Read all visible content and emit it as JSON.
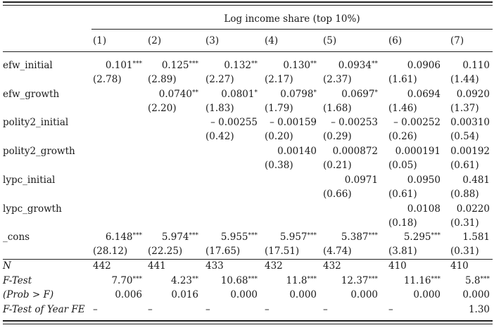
{
  "header": {
    "dependent_variable": "Log income share (top 10%)",
    "columns": [
      "(1)",
      "(2)",
      "(3)",
      "(4)",
      "(5)",
      "(6)",
      "(7)"
    ]
  },
  "rows": [
    {
      "label": "efw_initial",
      "coef": [
        "0.101",
        "0.125",
        "0.132",
        "0.130",
        "0.0934",
        "0.0906",
        "0.110"
      ],
      "stars": [
        "***",
        "***",
        "**",
        "**",
        "**",
        "",
        ""
      ],
      "t": [
        "(2.78)",
        "(2.89)",
        "(2.27)",
        "(2.17)",
        "(2.37)",
        "(1.61)",
        "(1.44)"
      ]
    },
    {
      "label": "efw_growth",
      "coef": [
        "",
        "0.0740",
        "0.0801",
        "0.0798",
        "0.0697",
        "0.0694",
        "0.0920"
      ],
      "stars": [
        "",
        "**",
        "*",
        "*",
        "*",
        "",
        ""
      ],
      "t": [
        "",
        "(2.20)",
        "(1.83)",
        "(1.79)",
        "(1.68)",
        "(1.46)",
        "(1.37)"
      ]
    },
    {
      "label": "polity2_initial",
      "coef": [
        "",
        "",
        "– 0.00255",
        "– 0.00159",
        "– 0.00253",
        "– 0.00252",
        "0.00310"
      ],
      "stars": [
        "",
        "",
        "",
        "",
        "",
        "",
        ""
      ],
      "t": [
        "",
        "",
        "(0.42)",
        "(0.20)",
        "(0.29)",
        "(0.26)",
        "(0.54)"
      ]
    },
    {
      "label": "polity2_growth",
      "coef": [
        "",
        "",
        "",
        "0.00140",
        "0.000872",
        "0.000191",
        "0.00192"
      ],
      "stars": [
        "",
        "",
        "",
        "",
        "",
        "",
        ""
      ],
      "t": [
        "",
        "",
        "",
        "(0.38)",
        "(0.21)",
        "(0.05)",
        "(0.61)"
      ]
    },
    {
      "label": "lypc_initial",
      "coef": [
        "",
        "",
        "",
        "",
        "0.0971",
        "0.0950",
        "0.481"
      ],
      "stars": [
        "",
        "",
        "",
        "",
        "",
        "",
        ""
      ],
      "t": [
        "",
        "",
        "",
        "",
        "(0.66)",
        "(0.61)",
        "(0.88)"
      ]
    },
    {
      "label": "lypc_growth",
      "coef": [
        "",
        "",
        "",
        "",
        "",
        "0.0108",
        "0.0220"
      ],
      "stars": [
        "",
        "",
        "",
        "",
        "",
        "",
        ""
      ],
      "t": [
        "",
        "",
        "",
        "",
        "",
        "(0.18)",
        "(0.31)"
      ]
    },
    {
      "label": "_cons",
      "coef": [
        "6.148",
        "5.974",
        "5.955",
        "5.957",
        "5.387",
        "5.295",
        "1.581"
      ],
      "stars": [
        "***",
        "***",
        "***",
        "***",
        "***",
        "***",
        ""
      ],
      "t": [
        "(28.12)",
        "(22.25)",
        "(17.65)",
        "(17.51)",
        "(4.74)",
        "(3.81)",
        "(0.31)"
      ]
    }
  ],
  "stats": {
    "n": {
      "label": "N",
      "values": [
        "442",
        "441",
        "433",
        "432",
        "432",
        "410",
        "410"
      ]
    },
    "ftest": {
      "label": "F-Test",
      "values": [
        "7.70",
        "4.23",
        "10.68",
        "11.8",
        "12.37",
        "11.16",
        "5.8"
      ],
      "stars": [
        "***",
        "**",
        "***",
        "***",
        "***",
        "***",
        "***"
      ]
    },
    "prob": {
      "label": "(Prob > F)",
      "values": [
        "0.006",
        "0.016",
        "0.000",
        "0.000",
        "0.000",
        "0.000",
        "0.000"
      ]
    },
    "yearfe": {
      "label": "F-Test of Year FE",
      "values": [
        "–",
        "–",
        "–",
        "–",
        "–",
        "–",
        "1.30"
      ]
    }
  }
}
